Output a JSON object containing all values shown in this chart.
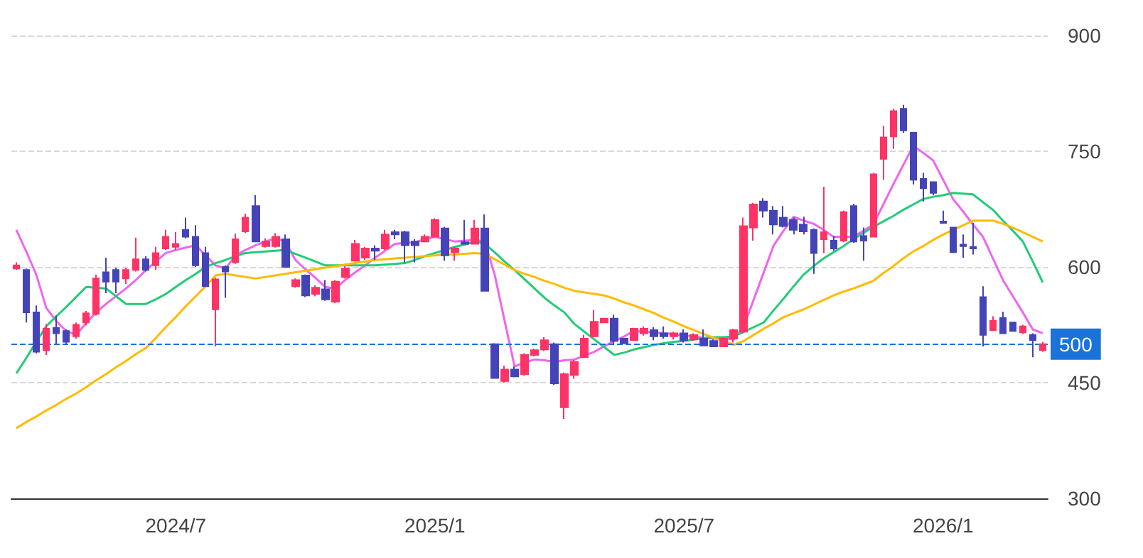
{
  "chart_data": {
    "type": "candlestick",
    "categories": [
      null,
      null,
      null,
      null,
      null,
      null,
      null,
      null,
      null,
      null,
      null,
      null,
      null,
      null,
      null,
      null,
      "2024/7",
      null,
      null,
      null,
      null,
      null,
      null,
      null,
      null,
      null,
      null,
      null,
      null,
      null,
      null,
      null,
      null,
      null,
      null,
      null,
      null,
      null,
      null,
      null,
      null,
      null,
      "2025/1",
      null,
      null,
      null,
      null,
      null,
      null,
      null,
      null,
      null,
      null,
      null,
      null,
      null,
      null,
      null,
      null,
      null,
      null,
      null,
      null,
      null,
      null,
      null,
      null,
      "2025/7",
      null,
      null,
      null,
      null,
      null,
      null,
      null,
      null,
      null,
      null,
      null,
      null,
      null,
      null,
      null,
      null,
      null,
      null,
      null,
      null,
      null,
      null,
      null,
      null,
      null,
      "2026/1",
      null,
      null,
      null,
      null,
      null,
      null,
      null,
      null,
      null,
      null
    ],
    "ohlc": [
      [
        598,
        606,
        596,
        602
      ],
      [
        596,
        598,
        528,
        541
      ],
      [
        541,
        550,
        488,
        490
      ],
      [
        492,
        526,
        486,
        520
      ],
      [
        521,
        537,
        500,
        514
      ],
      [
        517,
        519,
        499,
        503
      ],
      [
        510,
        528,
        507,
        525
      ],
      [
        528,
        543,
        524,
        540
      ],
      [
        539,
        590,
        537,
        585
      ],
      [
        593,
        612,
        566,
        581
      ],
      [
        596,
        599,
        566,
        581
      ],
      [
        585,
        599,
        578,
        596
      ],
      [
        596,
        638,
        594,
        610
      ],
      [
        610,
        614,
        594,
        596
      ],
      [
        602,
        626,
        596,
        618
      ],
      [
        624,
        648,
        622,
        639
      ],
      [
        626,
        645,
        622,
        630
      ],
      [
        648,
        664,
        637,
        639
      ],
      [
        639,
        654,
        600,
        602
      ],
      [
        618,
        626,
        575,
        575
      ],
      [
        545,
        586,
        497,
        584
      ],
      [
        600,
        602,
        560,
        594
      ],
      [
        606,
        643,
        604,
        636
      ],
      [
        646,
        669,
        644,
        664
      ],
      [
        679,
        693,
        632,
        633
      ],
      [
        627,
        637,
        625,
        633
      ],
      [
        627,
        644,
        625,
        639
      ],
      [
        636,
        642,
        600,
        600
      ],
      [
        575,
        585,
        573,
        583
      ],
      [
        589,
        590,
        561,
        563
      ],
      [
        565,
        576,
        562,
        573
      ],
      [
        571,
        583,
        556,
        558
      ],
      [
        555,
        583,
        553,
        581
      ],
      [
        587,
        601,
        585,
        598
      ],
      [
        608,
        635,
        607,
        630
      ],
      [
        612,
        626,
        609,
        624
      ],
      [
        624,
        628,
        609,
        621
      ],
      [
        624,
        648,
        622,
        642
      ],
      [
        645,
        648,
        636,
        642
      ],
      [
        645,
        647,
        606,
        628
      ],
      [
        633,
        636,
        606,
        628
      ],
      [
        633,
        642,
        632,
        639
      ],
      [
        639,
        663,
        639,
        661
      ],
      [
        650,
        652,
        608,
        615
      ],
      [
        619,
        626,
        608,
        624
      ],
      [
        632,
        661,
        630,
        630
      ],
      [
        630,
        661,
        629,
        650
      ],
      [
        650,
        668,
        568,
        569
      ],
      [
        500,
        501,
        455,
        456
      ],
      [
        452,
        472,
        450,
        467
      ],
      [
        467,
        471,
        457,
        458
      ],
      [
        461,
        488,
        459,
        486
      ],
      [
        486,
        494,
        484,
        492
      ],
      [
        493,
        509,
        491,
        505
      ],
      [
        500,
        502,
        447,
        449
      ],
      [
        418,
        463,
        403,
        461
      ],
      [
        460,
        480,
        455,
        477
      ],
      [
        483,
        512,
        482,
        507
      ],
      [
        510,
        544,
        509,
        529
      ],
      [
        528,
        534,
        527,
        533
      ],
      [
        533,
        538,
        499,
        504
      ],
      [
        507,
        508,
        500,
        501
      ],
      [
        505,
        521,
        504,
        520
      ],
      [
        514,
        523,
        511,
        520
      ],
      [
        518,
        522,
        505,
        510
      ],
      [
        514,
        523,
        507,
        510
      ],
      [
        510,
        516,
        506,
        514
      ],
      [
        514,
        519,
        502,
        505
      ],
      [
        506,
        514,
        504,
        512
      ],
      [
        507,
        519,
        498,
        498
      ],
      [
        504,
        506,
        496,
        497
      ],
      [
        497,
        509,
        496,
        507
      ],
      [
        507,
        520,
        502,
        518
      ],
      [
        516,
        664,
        514,
        653
      ],
      [
        651,
        683,
        634,
        681
      ],
      [
        685,
        689,
        664,
        673
      ],
      [
        673,
        679,
        642,
        655
      ],
      [
        664,
        679,
        651,
        653
      ],
      [
        661,
        664,
        642,
        648
      ],
      [
        655,
        665,
        642,
        646
      ],
      [
        648,
        650,
        591,
        618
      ],
      [
        636,
        704,
        618,
        645
      ],
      [
        634,
        640,
        621,
        624
      ],
      [
        634,
        673,
        632,
        671
      ],
      [
        679,
        682,
        631,
        633
      ],
      [
        640,
        651,
        608,
        634
      ],
      [
        639,
        722,
        639,
        720
      ],
      [
        740,
        783,
        713,
        768
      ],
      [
        769,
        805,
        753,
        802
      ],
      [
        805,
        810,
        774,
        777
      ],
      [
        774,
        775,
        707,
        713
      ],
      [
        714,
        722,
        685,
        702
      ],
      [
        710,
        711,
        693,
        696
      ],
      [
        659,
        673,
        656,
        657
      ],
      [
        651,
        652,
        618,
        619
      ],
      [
        629,
        642,
        612,
        627
      ],
      [
        626,
        657,
        616,
        624
      ],
      [
        561,
        575,
        497,
        512
      ],
      [
        518,
        536,
        517,
        530
      ],
      [
        534,
        542,
        513,
        514
      ],
      [
        528,
        529,
        516,
        517
      ],
      [
        515,
        525,
        513,
        523
      ],
      [
        512,
        514,
        483,
        505
      ],
      [
        492,
        503,
        490,
        500
      ]
    ],
    "colors": [
      "#ff3366",
      "#4444b8",
      "#4444b8",
      "#ff3366",
      "#4444b8",
      "#4444b8",
      "#ff3366",
      "#ff3366",
      "#ff3366",
      "#4444b8",
      "#4444b8",
      "#ff3366",
      "#ff3366",
      "#4444b8",
      "#ff3366",
      "#ff3366",
      "#ff3366",
      "#4444b8",
      "#4444b8",
      "#4444b8",
      "#ff3366",
      "#4444b8",
      "#ff3366",
      "#ff3366",
      "#4444b8",
      "#ff3366",
      "#ff3366",
      "#4444b8",
      "#ff3366",
      "#4444b8",
      "#ff3366",
      "#4444b8",
      "#ff3366",
      "#ff3366",
      "#ff3366",
      "#ff3366",
      "#4444b8",
      "#ff3366",
      "#4444b8",
      "#4444b8",
      "#4444b8",
      "#ff3366",
      "#ff3366",
      "#4444b8",
      "#ff3366",
      "#4444b8",
      "#ff3366",
      "#4444b8",
      "#4444b8",
      "#ff3366",
      "#4444b8",
      "#ff3366",
      "#ff3366",
      "#ff3366",
      "#4444b8",
      "#ff3366",
      "#ff3366",
      "#ff3366",
      "#ff3366",
      "#ff3366",
      "#4444b8",
      "#4444b8",
      "#ff3366",
      "#ff3366",
      "#4444b8",
      "#4444b8",
      "#ff3366",
      "#4444b8",
      "#ff3366",
      "#4444b8",
      "#4444b8",
      "#ff3366",
      "#ff3366",
      "#ff3366",
      "#ff3366",
      "#4444b8",
      "#4444b8",
      "#4444b8",
      "#4444b8",
      "#4444b8",
      "#4444b8",
      "#ff3366",
      "#4444b8",
      "#ff3366",
      "#4444b8",
      "#4444b8",
      "#ff3366",
      "#ff3366",
      "#ff3366",
      "#4444b8",
      "#4444b8",
      "#4444b8",
      "#4444b8",
      "#4444b8",
      "#4444b8",
      "#4444b8",
      "#4444b8",
      "#4444b8",
      "#ff3366",
      "#4444b8",
      "#4444b8",
      "#ff3366",
      "#4444b8",
      "#ff3366"
    ],
    "series": [
      {
        "type": "line",
        "color": "#ee66ee",
        "values": [
          648,
          620,
          590,
          547,
          530,
          517,
          512,
          527,
          541,
          552,
          562,
          572,
          583,
          596,
          607,
          618,
          622,
          625,
          628,
          615,
          602,
          598,
          615,
          622,
          628,
          633,
          637,
          633,
          609,
          597,
          586,
          574,
          572,
          583,
          593,
          602,
          612,
          621,
          630,
          631,
          632,
          636,
          639,
          636,
          633,
          634,
          635,
          633,
          590,
          530,
          471,
          476,
          480,
          479,
          477,
          479,
          480,
          485,
          490,
          497,
          504,
          510,
          517,
          516,
          515,
          514,
          513,
          511,
          510,
          508,
          507,
          507,
          506,
          523,
          558,
          593,
          628,
          647,
          665,
          660,
          656,
          648,
          639,
          639,
          639,
          647,
          655,
          681,
          707,
          732,
          757,
          748,
          738,
          713,
          688,
          672,
          655,
          639,
          611,
          583,
          562,
          541,
          519,
          514
        ]
      },
      {
        "type": "line",
        "color": "#22cc77",
        "values": [
          462,
          482,
          503,
          523,
          536,
          548,
          561,
          574,
          573,
          572,
          562,
          552,
          552,
          552,
          558,
          565,
          574,
          583,
          591,
          600,
          605,
          609,
          614,
          618,
          619,
          620,
          621,
          622,
          617,
          612,
          607,
          602,
          602,
          602,
          602,
          602,
          602,
          603,
          604,
          605,
          609,
          614,
          618,
          622,
          626,
          629,
          633,
          630,
          619,
          607,
          596,
          584,
          572,
          560,
          550,
          541,
          526,
          516,
          506,
          496,
          486,
          489,
          493,
          496,
          499,
          501,
          503,
          504,
          506,
          508,
          509,
          509,
          510,
          516,
          522,
          528,
          544,
          559,
          575,
          590,
          601,
          611,
          619,
          627,
          636,
          644,
          652,
          659,
          666,
          674,
          681,
          688,
          691,
          693,
          696,
          695,
          694,
          684,
          674,
          660,
          647,
          633,
          607,
          580
        ]
      },
      {
        "type": "line",
        "color": "#ffbb00",
        "values": [
          391,
          399,
          406,
          414,
          421,
          429,
          436,
          444,
          453,
          461,
          470,
          478,
          487,
          495,
          508,
          522,
          535,
          549,
          562,
          575,
          589,
          591,
          589,
          587,
          585,
          587,
          589,
          591,
          593,
          595,
          597,
          599,
          601,
          603,
          605,
          607,
          609,
          610,
          611,
          612,
          613,
          614,
          615,
          616,
          616,
          617,
          618,
          617,
          610,
          603,
          596,
          591,
          587,
          582,
          578,
          573,
          569,
          567,
          565,
          563,
          559,
          554,
          550,
          545,
          540,
          534,
          529,
          523,
          518,
          513,
          508,
          504,
          499,
          504,
          512,
          520,
          527,
          535,
          540,
          545,
          551,
          557,
          563,
          568,
          572,
          577,
          582,
          592,
          601,
          611,
          620,
          627,
          635,
          642,
          648,
          654,
          660,
          660,
          660,
          656,
          651,
          645,
          639,
          633
        ]
      }
    ],
    "ylim": [
      300,
      900
    ],
    "yticks": [
      300,
      450,
      600,
      750,
      900
    ],
    "grid": "y",
    "ref_lines": [
      {
        "axis": "y",
        "value": 500,
        "label": "500",
        "color": "#1a73d9",
        "line_style": "dashed"
      }
    ]
  }
}
